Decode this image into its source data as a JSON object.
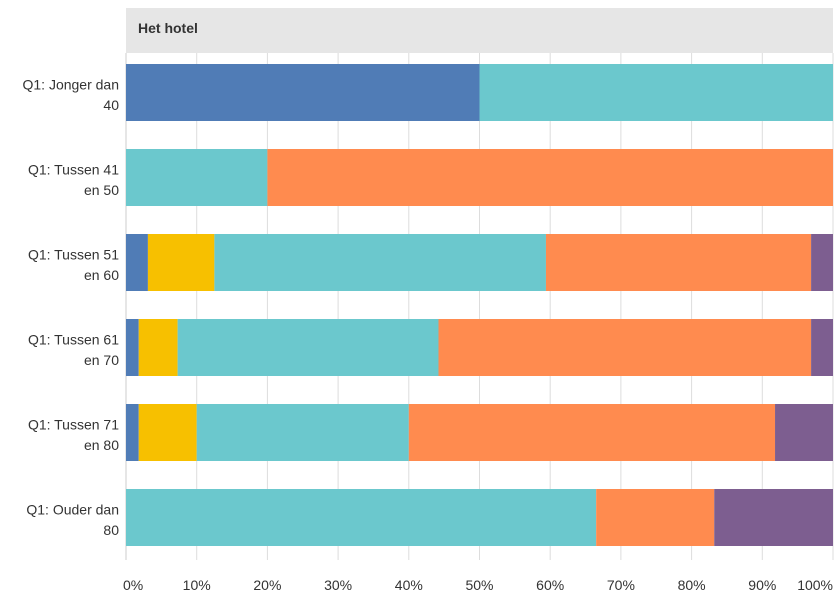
{
  "chart_data": {
    "type": "bar",
    "orientation": "horizontal",
    "stacked": true,
    "title": "Het hotel",
    "categories": [
      [
        "Q1: Jonger dan",
        "40"
      ],
      [
        "Q1: Tussen 41",
        "en 50"
      ],
      [
        "Q1: Tussen 51",
        "en 60"
      ],
      [
        "Q1: Tussen 61",
        "en 70"
      ],
      [
        "Q1: Tussen 71",
        "en 80"
      ],
      [
        "Q1: Ouder dan",
        "80"
      ]
    ],
    "series": [
      {
        "color": "#507cb6",
        "values": [
          50.0,
          0.0,
          3.1,
          1.8,
          1.8,
          0.0
        ]
      },
      {
        "color": "#f7c000",
        "values": [
          0.0,
          0.0,
          9.4,
          5.5,
          8.2,
          0.0
        ]
      },
      {
        "color": "#6bc8cd",
        "values": [
          50.0,
          20.0,
          46.9,
          36.9,
          30.0,
          66.5
        ]
      },
      {
        "color": "#ff8b4f",
        "values": [
          0.0,
          80.0,
          37.5,
          52.7,
          51.8,
          16.7
        ]
      },
      {
        "color": "#7d5e90",
        "values": [
          0.0,
          0.0,
          3.1,
          3.6,
          8.2,
          16.8
        ]
      }
    ],
    "xlim": [
      0,
      100
    ],
    "xticks": [
      "0%",
      "10%",
      "20%",
      "30%",
      "40%",
      "50%",
      "60%",
      "70%",
      "80%",
      "90%",
      "100%"
    ],
    "grid": true,
    "legend": "none"
  }
}
